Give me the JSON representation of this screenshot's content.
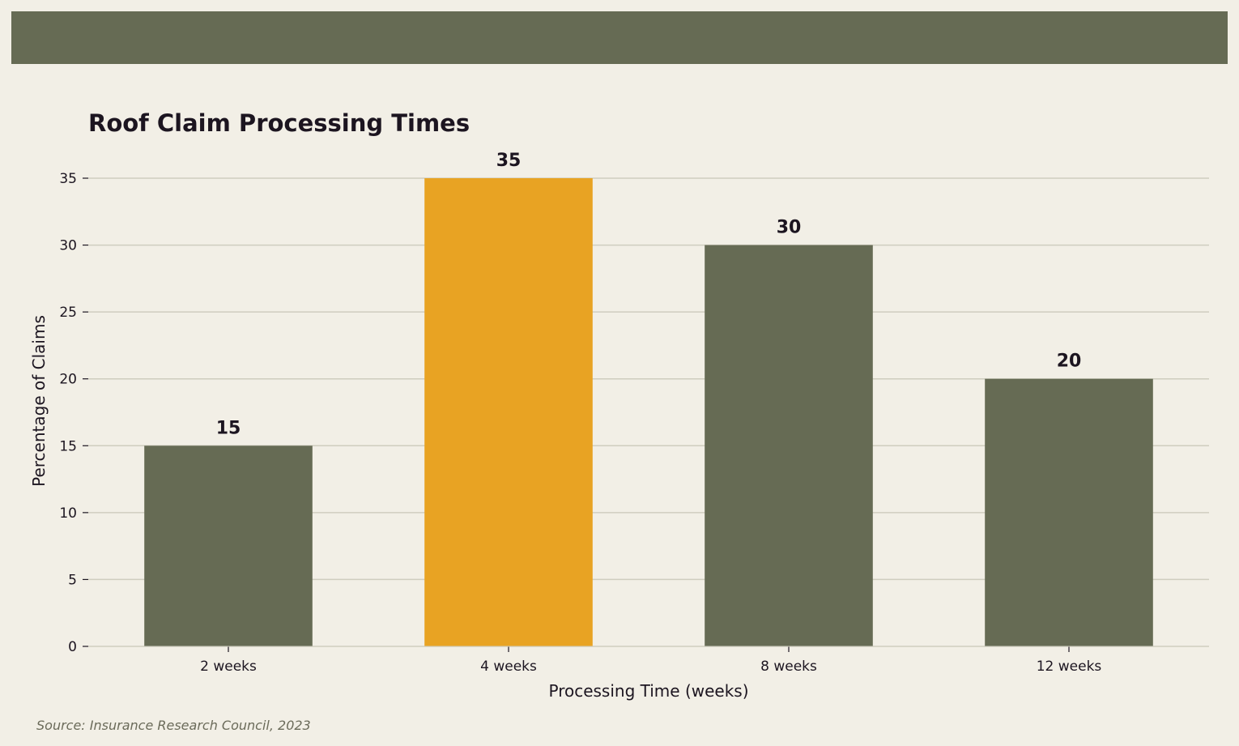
{
  "colors": {
    "background": "#f2efe6",
    "banner": "#666b54",
    "bar_default": "#666b54",
    "bar_highlight": "#e8a323",
    "grid": "#cfcdbf",
    "text": "#1c1520"
  },
  "chart_data": {
    "type": "bar",
    "title": "Roof Claim Processing Times",
    "xlabel": "Processing Time (weeks)",
    "ylabel": "Percentage of Claims",
    "categories": [
      "2 weeks",
      "4 weeks",
      "8 weeks",
      "12 weeks"
    ],
    "values": [
      15,
      35,
      30,
      20
    ],
    "value_labels": [
      "15",
      "35",
      "30",
      "20"
    ],
    "highlight_index": 1,
    "ylim": [
      0,
      35
    ],
    "yticks": [
      0,
      5,
      10,
      15,
      20,
      25,
      30,
      35
    ],
    "grid": true,
    "legend": false
  },
  "footer": {
    "source": "Source: Insurance Research Council, 2023"
  }
}
